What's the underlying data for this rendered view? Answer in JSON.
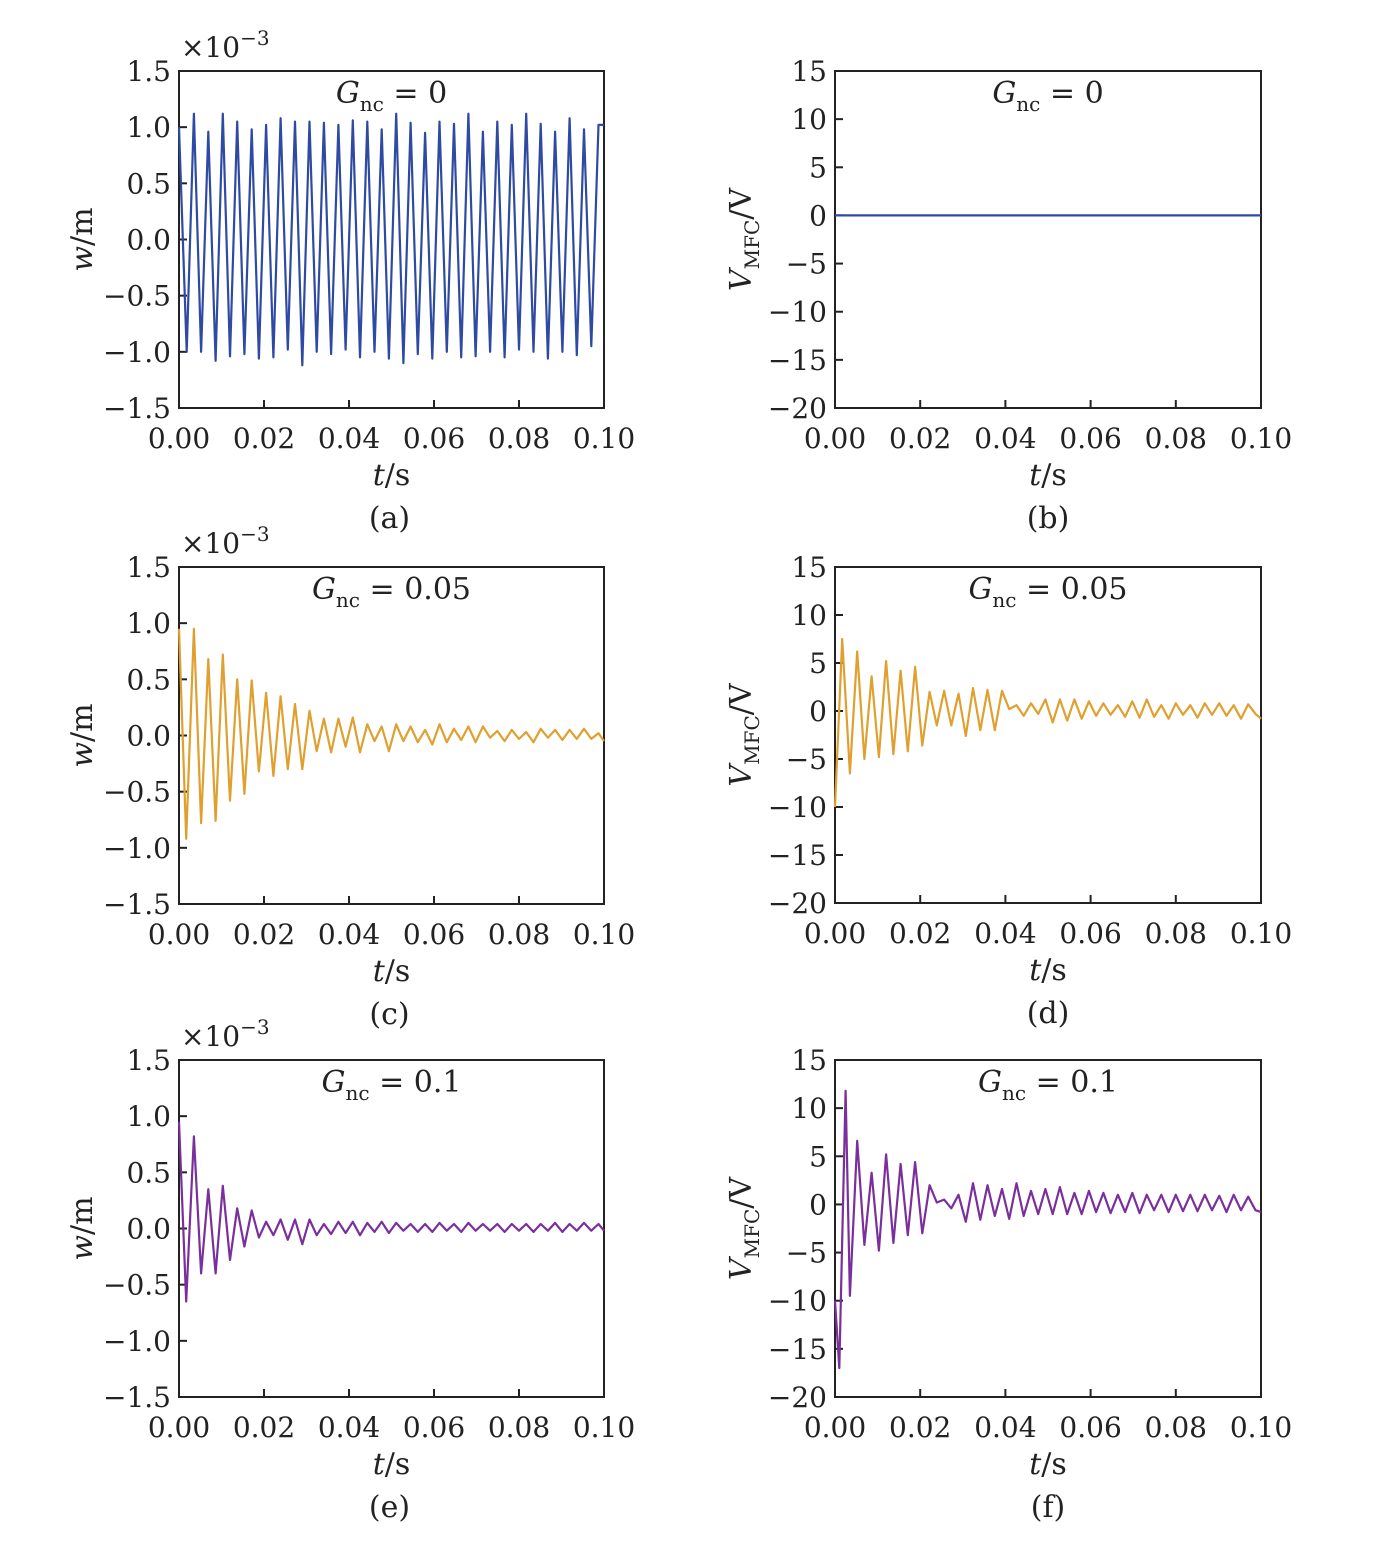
{
  "figure": {
    "captions": [
      "(a)",
      "(b)",
      "(c)",
      "(d)",
      "(e)",
      "(f)"
    ]
  },
  "chart_data": [
    {
      "type": "line",
      "panel": "(a)",
      "annotation": "G_nc = 0",
      "xlabel": "t/s",
      "ylabel": "w/m",
      "y_scale_label": "×10^-3",
      "xlim": [
        0,
        0.1
      ],
      "ylim": [
        -1.5,
        1.5
      ],
      "x_ticks": [
        "0.00",
        "0.02",
        "0.04",
        "0.06",
        "0.08",
        "0.10"
      ],
      "y_ticks": [
        "1.5",
        "1.0",
        "0.5",
        "0.0",
        "−0.5",
        "−1.0",
        "−1.5"
      ],
      "color": "#2e4aa3",
      "series": [
        {
          "x": [
            0.0,
            0.0018,
            0.0035,
            0.0052,
            0.0069,
            0.0086,
            0.0103,
            0.012,
            0.0137,
            0.0154,
            0.0171,
            0.0188,
            0.0205,
            0.0222,
            0.0239,
            0.0256,
            0.0273,
            0.029,
            0.0307,
            0.0324,
            0.0341,
            0.0358,
            0.0375,
            0.0392,
            0.0409,
            0.0426,
            0.0443,
            0.046,
            0.0477,
            0.0494,
            0.0511,
            0.0528,
            0.0545,
            0.0562,
            0.0579,
            0.0596,
            0.0613,
            0.063,
            0.0647,
            0.0664,
            0.0681,
            0.0698,
            0.0715,
            0.0732,
            0.0749,
            0.0766,
            0.0783,
            0.08,
            0.0817,
            0.0834,
            0.0851,
            0.0868,
            0.0885,
            0.0902,
            0.0919,
            0.0936,
            0.0953,
            0.097,
            0.0987,
            0.1
          ],
          "y": [
            1.0,
            -1.0,
            1.12,
            -1.0,
            0.96,
            -1.08,
            1.12,
            -1.04,
            1.05,
            -1.02,
            0.98,
            -1.06,
            1.02,
            -1.05,
            1.08,
            -0.98,
            1.05,
            -1.12,
            1.05,
            -1.0,
            1.04,
            -1.02,
            1.02,
            -0.98,
            1.06,
            -1.05,
            1.05,
            -1.0,
            0.98,
            -1.06,
            1.12,
            -1.1,
            1.04,
            -1.02,
            0.95,
            -1.06,
            1.05,
            -1.0,
            1.03,
            -1.05,
            1.12,
            -1.04,
            0.96,
            -1.0,
            1.05,
            -1.05,
            1.02,
            -0.98,
            1.12,
            -1.0,
            1.03,
            -1.06,
            0.96,
            -1.0,
            1.08,
            -1.03,
            0.98,
            -0.95,
            1.02,
            1.02
          ]
        }
      ]
    },
    {
      "type": "line",
      "panel": "(b)",
      "annotation": "G_nc = 0",
      "xlabel": "t/s",
      "ylabel": "V_MFC/V",
      "xlim": [
        0,
        0.1
      ],
      "ylim": [
        -20,
        15
      ],
      "x_ticks": [
        "0.00",
        "0.02",
        "0.04",
        "0.06",
        "0.08",
        "0.10"
      ],
      "y_ticks": [
        "15",
        "10",
        "5",
        "0",
        "−5",
        "−10",
        "−15",
        "−20"
      ],
      "color": "#2e4aa3",
      "series": [
        {
          "x": [
            0.0,
            0.1
          ],
          "y": [
            0.0,
            0.0
          ]
        }
      ]
    },
    {
      "type": "line",
      "panel": "(c)",
      "annotation": "G_nc = 0.05",
      "xlabel": "t/s",
      "ylabel": "w/m",
      "y_scale_label": "×10^-3",
      "xlim": [
        0,
        0.1
      ],
      "ylim": [
        -1.5,
        1.5
      ],
      "x_ticks": [
        "0.00",
        "0.02",
        "0.04",
        "0.06",
        "0.08",
        "0.10"
      ],
      "y_ticks": [
        "1.5",
        "1.0",
        "0.5",
        "0.0",
        "−0.5",
        "−1.0",
        "−1.5"
      ],
      "color": "#e0a030",
      "series": [
        {
          "x": [
            0.0,
            0.0017,
            0.0035,
            0.0052,
            0.0069,
            0.0086,
            0.0103,
            0.012,
            0.0137,
            0.0154,
            0.0171,
            0.0188,
            0.0205,
            0.0222,
            0.0239,
            0.0256,
            0.0273,
            0.029,
            0.0307,
            0.0324,
            0.0341,
            0.0358,
            0.0375,
            0.0392,
            0.0409,
            0.0426,
            0.0443,
            0.046,
            0.0477,
            0.0494,
            0.0511,
            0.0528,
            0.0545,
            0.0562,
            0.0579,
            0.0596,
            0.0613,
            0.063,
            0.0647,
            0.0664,
            0.0681,
            0.0698,
            0.0715,
            0.0732,
            0.0749,
            0.0766,
            0.0783,
            0.08,
            0.0817,
            0.0834,
            0.0851,
            0.0868,
            0.0885,
            0.0902,
            0.0919,
            0.0936,
            0.0953,
            0.097,
            0.0987,
            0.1
          ],
          "y": [
            0.95,
            -0.92,
            0.95,
            -0.78,
            0.68,
            -0.76,
            0.72,
            -0.58,
            0.5,
            -0.52,
            0.49,
            -0.32,
            0.38,
            -0.36,
            0.35,
            -0.3,
            0.28,
            -0.3,
            0.22,
            -0.14,
            0.15,
            -0.15,
            0.15,
            -0.1,
            0.16,
            -0.15,
            0.1,
            -0.05,
            0.08,
            -0.14,
            0.1,
            -0.05,
            0.08,
            -0.06,
            0.05,
            -0.08,
            0.1,
            -0.06,
            0.06,
            -0.04,
            0.08,
            -0.06,
            0.08,
            -0.02,
            0.04,
            -0.05,
            0.05,
            -0.03,
            0.03,
            -0.06,
            0.06,
            -0.02,
            0.05,
            -0.04,
            0.05,
            -0.03,
            0.06,
            -0.03,
            0.02,
            -0.05
          ]
        }
      ]
    },
    {
      "type": "line",
      "panel": "(d)",
      "annotation": "G_nc = 0.05",
      "xlabel": "t/s",
      "ylabel": "V_MFC/V",
      "xlim": [
        0,
        0.1
      ],
      "ylim": [
        -20,
        15
      ],
      "x_ticks": [
        "0.00",
        "0.02",
        "0.04",
        "0.06",
        "0.08",
        "0.10"
      ],
      "y_ticks": [
        "15",
        "10",
        "5",
        "0",
        "−5",
        "−10",
        "−15",
        "−20"
      ],
      "color": "#e0a030",
      "series": [
        {
          "x": [
            0.0,
            0.0017,
            0.0035,
            0.0052,
            0.0069,
            0.0086,
            0.0103,
            0.012,
            0.0137,
            0.0154,
            0.0171,
            0.0188,
            0.0205,
            0.0222,
            0.0239,
            0.0256,
            0.0273,
            0.029,
            0.0307,
            0.0324,
            0.0341,
            0.0358,
            0.0375,
            0.0392,
            0.0409,
            0.0426,
            0.0443,
            0.046,
            0.0477,
            0.0494,
            0.0511,
            0.0528,
            0.0545,
            0.0562,
            0.0579,
            0.0596,
            0.0613,
            0.063,
            0.0647,
            0.0664,
            0.0681,
            0.0698,
            0.0715,
            0.0732,
            0.0749,
            0.0766,
            0.0783,
            0.08,
            0.0817,
            0.0834,
            0.0851,
            0.0868,
            0.0885,
            0.0902,
            0.0919,
            0.0936,
            0.0953,
            0.097,
            0.0987,
            0.1
          ],
          "y": [
            -10.0,
            7.5,
            -6.5,
            6.2,
            -5.0,
            3.6,
            -4.8,
            5.2,
            -4.5,
            4.2,
            -4.2,
            4.6,
            -3.6,
            2.0,
            -1.5,
            2.1,
            -1.5,
            1.8,
            -2.6,
            2.4,
            -2.0,
            2.2,
            -2.0,
            2.1,
            0.2,
            0.6,
            -0.5,
            0.8,
            -0.3,
            1.2,
            -1.2,
            1.2,
            -1.0,
            1.2,
            -0.8,
            1.0,
            -0.5,
            0.8,
            -0.4,
            0.6,
            -0.6,
            1.0,
            -0.7,
            1.2,
            -0.6,
            0.6,
            -0.8,
            0.8,
            -0.4,
            0.6,
            -0.7,
            0.8,
            -0.4,
            0.8,
            -0.5,
            0.6,
            -0.8,
            0.7,
            -0.3,
            -0.8
          ]
        }
      ]
    },
    {
      "type": "line",
      "panel": "(e)",
      "annotation": "G_nc = 0.1",
      "xlabel": "t/s",
      "ylabel": "w/m",
      "y_scale_label": "×10^-3",
      "xlim": [
        0,
        0.1
      ],
      "ylim": [
        -1.5,
        1.5
      ],
      "x_ticks": [
        "0.00",
        "0.02",
        "0.04",
        "0.06",
        "0.08",
        "0.10"
      ],
      "y_ticks": [
        "1.5",
        "1.0",
        "0.5",
        "0.0",
        "−0.5",
        "−1.0",
        "−1.5"
      ],
      "color": "#7a2f9c",
      "series": [
        {
          "x": [
            0.0,
            0.0017,
            0.0035,
            0.0052,
            0.0069,
            0.0086,
            0.0103,
            0.012,
            0.0137,
            0.0154,
            0.0171,
            0.0188,
            0.0205,
            0.0222,
            0.0239,
            0.0256,
            0.0273,
            0.029,
            0.0307,
            0.0324,
            0.0341,
            0.0358,
            0.0375,
            0.0392,
            0.0409,
            0.0426,
            0.0443,
            0.046,
            0.0477,
            0.0494,
            0.0511,
            0.0528,
            0.0545,
            0.0562,
            0.0579,
            0.0596,
            0.0613,
            0.063,
            0.0647,
            0.0664,
            0.0681,
            0.0698,
            0.0715,
            0.0732,
            0.0749,
            0.0766,
            0.0783,
            0.08,
            0.0817,
            0.0834,
            0.0851,
            0.0868,
            0.0885,
            0.0902,
            0.0919,
            0.0936,
            0.0953,
            0.097,
            0.0987,
            0.1
          ],
          "y": [
            0.95,
            -0.65,
            0.82,
            -0.4,
            0.35,
            -0.4,
            0.38,
            -0.28,
            0.18,
            -0.16,
            0.16,
            -0.08,
            0.06,
            -0.06,
            0.08,
            -0.1,
            0.08,
            -0.14,
            0.08,
            -0.06,
            0.04,
            -0.05,
            0.06,
            -0.04,
            0.06,
            -0.06,
            0.05,
            -0.03,
            0.06,
            -0.04,
            0.05,
            -0.02,
            0.04,
            -0.03,
            0.04,
            -0.03,
            0.05,
            -0.02,
            0.04,
            -0.03,
            0.05,
            -0.02,
            0.04,
            -0.02,
            0.04,
            -0.03,
            0.04,
            -0.02,
            0.04,
            -0.03,
            0.04,
            -0.02,
            0.05,
            -0.03,
            0.04,
            -0.02,
            0.05,
            -0.02,
            0.04,
            -0.02
          ]
        }
      ]
    },
    {
      "type": "line",
      "panel": "(f)",
      "annotation": "G_nc = 0.1",
      "xlabel": "t/s",
      "ylabel": "V_MFC/V",
      "xlim": [
        0,
        0.1
      ],
      "ylim": [
        -20,
        15
      ],
      "x_ticks": [
        "0.00",
        "0.02",
        "0.04",
        "0.06",
        "0.08",
        "0.10"
      ],
      "y_ticks": [
        "15",
        "10",
        "5",
        "0",
        "−5",
        "−10",
        "−15",
        "−20"
      ],
      "color": "#7a2f9c",
      "series": [
        {
          "x": [
            0.0,
            0.001,
            0.0025,
            0.0035,
            0.0052,
            0.0069,
            0.0086,
            0.0103,
            0.012,
            0.0137,
            0.0154,
            0.0171,
            0.0188,
            0.0205,
            0.0222,
            0.0239,
            0.0256,
            0.0273,
            0.029,
            0.0307,
            0.0324,
            0.0341,
            0.0358,
            0.0375,
            0.0392,
            0.0409,
            0.0426,
            0.0443,
            0.046,
            0.0477,
            0.0494,
            0.0511,
            0.0528,
            0.0545,
            0.0562,
            0.0579,
            0.0596,
            0.0613,
            0.063,
            0.0647,
            0.0664,
            0.0681,
            0.0698,
            0.0715,
            0.0732,
            0.0749,
            0.0766,
            0.0783,
            0.08,
            0.0817,
            0.0834,
            0.0851,
            0.0868,
            0.0885,
            0.0902,
            0.0919,
            0.0936,
            0.0953,
            0.097,
            0.0987,
            0.1
          ],
          "y": [
            -10.0,
            -17.0,
            11.8,
            -9.5,
            6.6,
            -4.2,
            3.3,
            -4.8,
            5.2,
            -4.0,
            4.2,
            -3.2,
            4.4,
            -3.0,
            2.0,
            0.2,
            0.5,
            -0.4,
            1.0,
            -1.8,
            2.2,
            -1.6,
            2.0,
            -1.2,
            1.6,
            -1.5,
            2.2,
            -1.2,
            1.4,
            -1.0,
            1.6,
            -1.0,
            1.8,
            -1.0,
            1.2,
            -1.0,
            1.4,
            -0.8,
            1.2,
            -0.9,
            1.0,
            -0.8,
            1.2,
            -0.9,
            1.0,
            -0.6,
            1.0,
            -0.8,
            1.0,
            -0.7,
            1.0,
            -0.7,
            1.0,
            -0.6,
            0.9,
            -0.8,
            1.0,
            -0.6,
            0.8,
            -0.6,
            -0.8
          ]
        }
      ]
    }
  ]
}
